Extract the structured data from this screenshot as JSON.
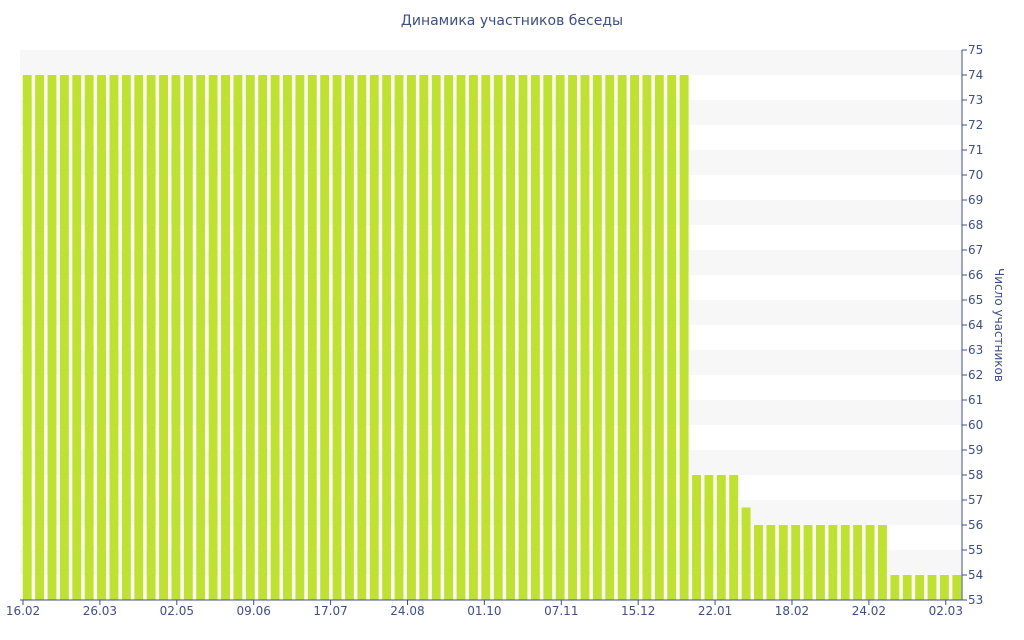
{
  "chart_data": {
    "type": "bar",
    "title": "Динамика участников беседы",
    "xlabel": "",
    "ylabel": "Число участников",
    "ylim": [
      53,
      75
    ],
    "yticks": [
      53,
      54,
      55,
      56,
      57,
      58,
      59,
      60,
      61,
      62,
      63,
      64,
      65,
      66,
      67,
      68,
      69,
      70,
      71,
      72,
      73,
      74,
      75
    ],
    "xtick_labels": [
      "16.02",
      "26.03",
      "02.05",
      "09.06",
      "17.07",
      "24.08",
      "01.10",
      "07.11",
      "15.12",
      "22.01",
      "18.02",
      "24.02",
      "02.03"
    ],
    "grid": "horizontal alternating bands",
    "colors": {
      "bar": "#bfe22e",
      "band": "#f7f7f7",
      "text": "#3d4f8f",
      "axis": "#3d4f8f"
    },
    "values": [
      74,
      74,
      74,
      74,
      74,
      74,
      74,
      74,
      74,
      74,
      74,
      74,
      74,
      74,
      74,
      74,
      74,
      74,
      74,
      74,
      74,
      74,
      74,
      74,
      74,
      74,
      74,
      74,
      74,
      74,
      74,
      74,
      74,
      74,
      74,
      74,
      74,
      74,
      74,
      74,
      74,
      74,
      74,
      74,
      74,
      74,
      74,
      74,
      74,
      74,
      74,
      74,
      74,
      74,
      58,
      58,
      58,
      58,
      56.7,
      56,
      56,
      56,
      56,
      56,
      56,
      56,
      56,
      56,
      56,
      56,
      54,
      54,
      54,
      54,
      54,
      54
    ]
  }
}
